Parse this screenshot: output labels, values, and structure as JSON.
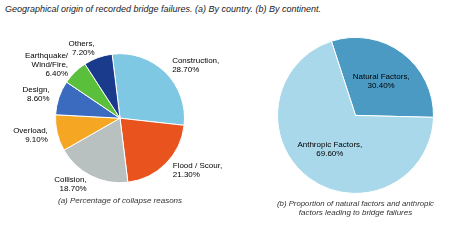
{
  "chart_data": [
    {
      "type": "pie",
      "title": "Geographical origin of recorded bridge failures. (a) By country. (b) By continent.",
      "xlabel": "(a) Percentage of collapse reasons",
      "categories": [
        "Construction,\n28.70%",
        "Flood / Scour,\n21.30%",
        "Collision,\n18.70%",
        "Overload,\n9.10%",
        "Design,\n8.60%",
        "Earthquake/\nWind/Fire,\n6.40%",
        "Others,\n7.20%"
      ],
      "values": [
        28.7,
        21.3,
        18.7,
        9.1,
        8.6,
        6.4,
        7.2
      ],
      "colors": [
        "#7ec8e3",
        "#e8531e",
        "#b8c0c0",
        "#f5a623",
        "#3a6bbf",
        "#5abf3a",
        "#1a3a8c"
      ]
    },
    {
      "type": "pie",
      "xlabel": "(b) Proportion of natural factors and anthropic\nfactors leading to bridge failures",
      "categories": [
        "Natural Factors,\n30.40%",
        "Anthropic Factors,\n69.60%"
      ],
      "values": [
        30.4,
        69.6
      ],
      "colors": [
        "#4a9ac4",
        "#a8d8ea"
      ]
    }
  ]
}
